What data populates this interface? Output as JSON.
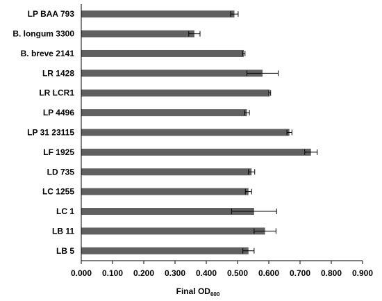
{
  "chart_data": {
    "type": "bar",
    "orientation": "horizontal",
    "categories": [
      "LP BAA 793",
      "B. longum 3300",
      "B. breve 2141",
      "LR 1428",
      "LR LCR1",
      "LP 4496",
      "LP 31 23115",
      "LF 1925",
      "LD 735",
      "LC 1255",
      "LC 1",
      "LB 11",
      "LB 5"
    ],
    "values": [
      0.49,
      0.362,
      0.52,
      0.58,
      0.603,
      0.53,
      0.666,
      0.735,
      0.545,
      0.535,
      0.553,
      0.588,
      0.535
    ],
    "errors": [
      0.012,
      0.018,
      0.004,
      0.05,
      0.003,
      0.008,
      0.008,
      0.02,
      0.01,
      0.01,
      0.072,
      0.035,
      0.018
    ],
    "xlabel": "Final OD",
    "xlabel_sub": "600",
    "xlim": [
      0,
      0.9
    ],
    "xticks": [
      "0.000",
      "0.100",
      "0.200",
      "0.300",
      "0.400",
      "0.500",
      "0.600",
      "0.700",
      "0.800",
      "0.900"
    ],
    "bar_color": "#606060",
    "grid": false,
    "legend": "none"
  }
}
